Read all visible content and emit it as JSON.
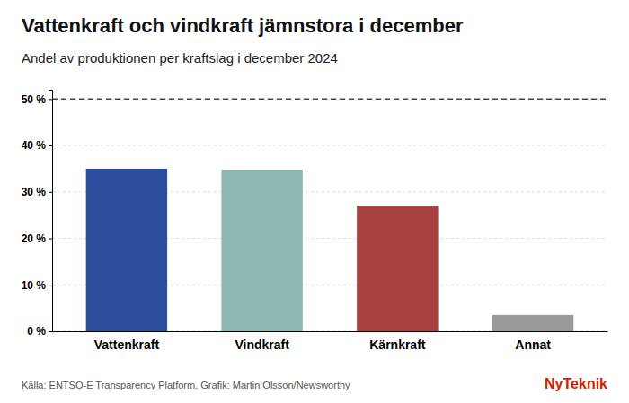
{
  "chart_data": {
    "type": "bar",
    "title": "Vattenkraft och vindkraft jämnstora i december",
    "subtitle": "Andel av produktionen per kraftslag i december 2024",
    "categories": [
      "Vattenkraft",
      "Vindkraft",
      "Kärnkraft",
      "Annat"
    ],
    "values": [
      35.0,
      34.8,
      27.0,
      3.5
    ],
    "colors": [
      "#2B4F9E",
      "#8DB8B2",
      "#A84040",
      "#9A9A9A"
    ],
    "ylim": [
      0,
      52
    ],
    "yticks": [
      {
        "value": 0,
        "label": "0 %"
      },
      {
        "value": 10,
        "label": "10 %"
      },
      {
        "value": 20,
        "label": "20 %"
      },
      {
        "value": 30,
        "label": "30 %"
      },
      {
        "value": 40,
        "label": "40 %"
      },
      {
        "value": 50,
        "label": "50 %"
      }
    ],
    "reference_line": 50,
    "grid": true,
    "source": "Källa: ENTSO-E Transparency Platform. Grafik: Martin Olsson/Newsworthy",
    "logo": "NyTeknik",
    "logo_color": "#CC2200"
  }
}
